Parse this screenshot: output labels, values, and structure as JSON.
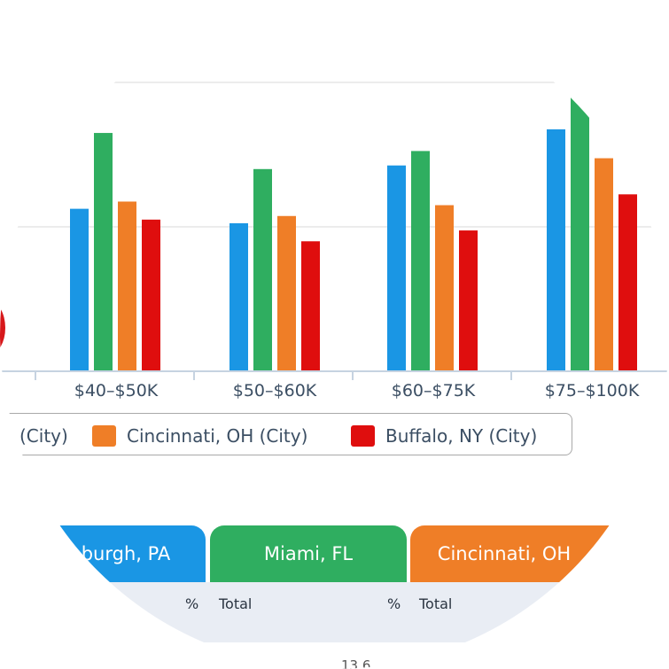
{
  "chart_data": {
    "type": "bar",
    "categories": [
      "$40–$50K",
      "$50–$60K",
      "$60–$75K",
      "$75–$100K"
    ],
    "series": [
      {
        "color": "#1a96e4",
        "values": [
          4.5,
          4.1,
          5.7,
          6.7
        ]
      },
      {
        "color": "#2fae60",
        "values": [
          6.6,
          5.6,
          6.1,
          7.6
        ]
      },
      {
        "color": "#ef7e27",
        "values": [
          4.7,
          4.3,
          4.6,
          5.9
        ]
      },
      {
        "color": "#df0e0e",
        "values": [
          4.2,
          3.6,
          3.9,
          4.9
        ]
      }
    ],
    "ylim": [
      0,
      8
    ],
    "grid": true,
    "legend_placement": "bottom"
  },
  "legend": {
    "items": [
      {
        "label": "(City)",
        "color": null
      },
      {
        "label": "Cincinnati, OH (City)",
        "color": "#ef7e27"
      },
      {
        "label": "Buffalo, NY (City)",
        "color": "#df0e0e"
      }
    ]
  },
  "city_tabs": [
    {
      "label": "burgh, PA",
      "color": "#1a96e4"
    },
    {
      "label": "Miami, FL",
      "color": "#2fae60"
    },
    {
      "label": "Cincinnati, OH",
      "color": "#ef7e27"
    }
  ],
  "subheaders": {
    "pct_1": "%",
    "total_1": "Total",
    "pct_2": "%",
    "total_2": "Total"
  },
  "partial_text": "13.6"
}
